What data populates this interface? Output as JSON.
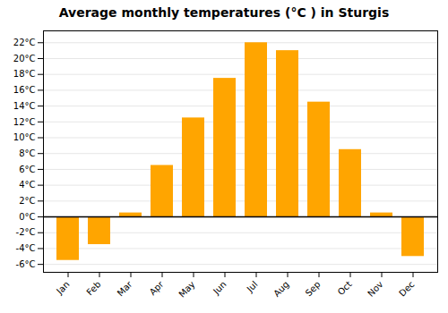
{
  "chart_data": {
    "type": "bar",
    "title": "Average monthly temperatures (°C ) in Sturgis",
    "categories": [
      "Jan",
      "Feb",
      "Mar",
      "Apr",
      "May",
      "Jun",
      "Jul",
      "Aug",
      "Sep",
      "Oct",
      "Nov",
      "Dec"
    ],
    "values": [
      -5.5,
      -3.5,
      0.5,
      6.5,
      12.5,
      17.5,
      22.0,
      21.0,
      14.5,
      8.5,
      0.5,
      -5.0
    ],
    "color": "#FFA500",
    "ylim": [
      -7,
      23.5
    ],
    "yticks": [
      {
        "value": -6,
        "label": "-6°C"
      },
      {
        "value": -4,
        "label": "-4°C"
      },
      {
        "value": -2,
        "label": "-2°C"
      },
      {
        "value": 0,
        "label": "0°C"
      },
      {
        "value": 2,
        "label": "2°C"
      },
      {
        "value": 4,
        "label": "4°C"
      },
      {
        "value": 6,
        "label": "6°C"
      },
      {
        "value": 8,
        "label": "8°C"
      },
      {
        "value": 10,
        "label": "10°C"
      },
      {
        "value": 12,
        "label": "12°C"
      },
      {
        "value": 14,
        "label": "14°C"
      },
      {
        "value": 16,
        "label": "16°C"
      },
      {
        "value": 18,
        "label": "18°C"
      },
      {
        "value": 20,
        "label": "20°C"
      },
      {
        "value": 22,
        "label": "22°C"
      }
    ],
    "grid": true
  }
}
